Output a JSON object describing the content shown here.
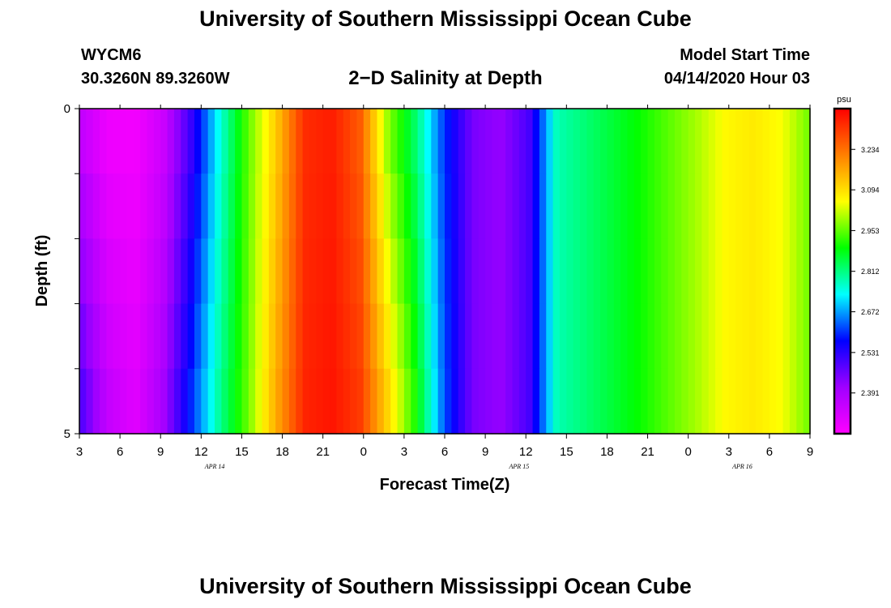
{
  "header": {
    "title": "University of Southern Mississippi Ocean Cube",
    "station_id": "WYCM6",
    "station_coords": "30.3260N 89.3260W",
    "model_start_label": "Model Start Time",
    "model_start_value": "04/14/2020 Hour 03"
  },
  "footer": {
    "title": "University of Southern Mississippi Ocean Cube"
  },
  "chart_data": {
    "type": "heatmap",
    "title": "2−D Salinity at Depth",
    "xlabel": "Forecast Time(Z)",
    "ylabel": "Depth (ft)",
    "ylim": [
      0,
      5
    ],
    "y_tick_labels": [
      "0",
      "5"
    ],
    "x_tick_labels": [
      "3",
      "6",
      "9",
      "12",
      "15",
      "18",
      "21",
      "0",
      "3",
      "6",
      "9",
      "12",
      "15",
      "18",
      "21",
      "0",
      "3",
      "6",
      "9"
    ],
    "date_labels": [
      {
        "text": "APR  14",
        "hour_index": 10
      },
      {
        "text": "APR  15",
        "hour_index": 32.5
      },
      {
        "text": "APR  16",
        "hour_index": 49
      }
    ],
    "xlim_hours": [
      0,
      54
    ],
    "depth_rows": 5,
    "colorbar": {
      "unit": "psu",
      "min": 2.25,
      "max": 3.375,
      "tick_values": [
        "2.391",
        "2.531",
        "2.672",
        "2.812",
        "2.953",
        "3.094",
        "3.234"
      ],
      "colors": [
        "#ff00ff",
        "#a000ff",
        "#0000ff",
        "#00ffff",
        "#00ff00",
        "#ffff00",
        "#ff8000",
        "#ff0000"
      ]
    },
    "salinity_psu_surface": [
      2.36,
      2.28,
      2.27,
      2.34,
      2.52,
      2.75,
      2.95,
      3.12,
      3.32,
      3.34,
      3.26,
      2.98,
      2.82,
      2.6,
      2.45,
      2.42,
      2.5,
      2.78,
      2.82,
      2.86,
      2.9,
      2.95,
      3.0,
      3.06,
      3.08,
      3.05,
      2.96
    ],
    "salinity_psu_bottom": [
      2.5,
      2.35,
      2.3,
      2.4,
      2.6,
      2.8,
      2.96,
      3.16,
      3.33,
      3.35,
      3.3,
      3.1,
      2.9,
      2.62,
      2.45,
      2.42,
      2.5,
      2.78,
      2.82,
      2.86,
      2.9,
      2.95,
      3.0,
      3.06,
      3.08,
      3.05,
      2.96
    ]
  }
}
